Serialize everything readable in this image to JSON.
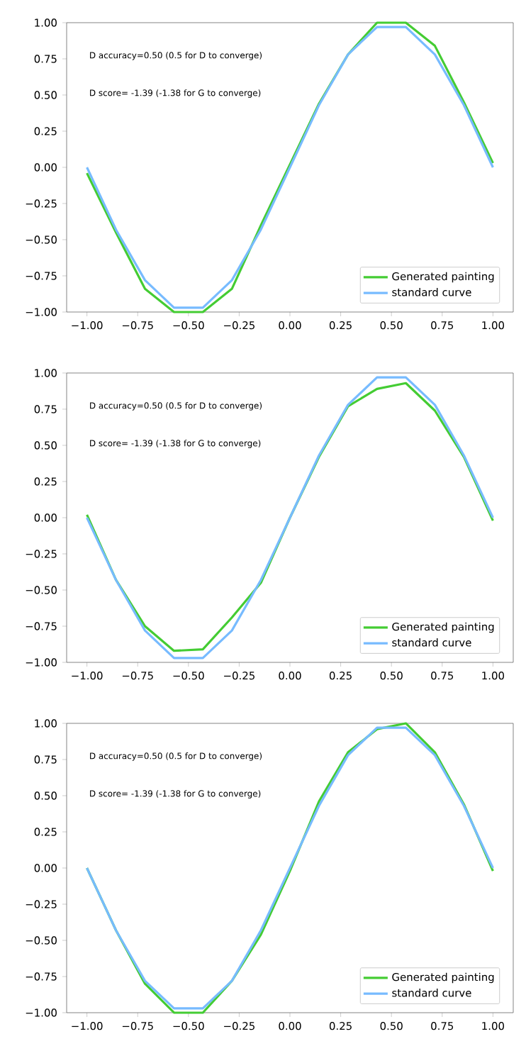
{
  "chart_data": [
    {
      "type": "line",
      "x": [
        -1,
        -0.857,
        -0.714,
        -0.571,
        -0.429,
        -0.286,
        -0.143,
        0,
        0.143,
        0.286,
        0.429,
        0.571,
        0.714,
        0.857,
        1
      ],
      "xlim": [
        -1.1,
        1.1
      ],
      "ylim": [
        -1,
        1
      ],
      "xticks": [
        {
          "value": -1,
          "label": "−1.00"
        },
        {
          "value": -0.75,
          "label": "−0.75"
        },
        {
          "value": -0.5,
          "label": "−0.50"
        },
        {
          "value": -0.25,
          "label": "−0.25"
        },
        {
          "value": 0,
          "label": "0.00"
        },
        {
          "value": 0.25,
          "label": "0.25"
        },
        {
          "value": 0.5,
          "label": "0.50"
        },
        {
          "value": 0.75,
          "label": "0.75"
        },
        {
          "value": 1,
          "label": "1.00"
        }
      ],
      "yticks": [
        {
          "value": -1,
          "label": "−1.00"
        },
        {
          "value": -0.75,
          "label": "−0.75"
        },
        {
          "value": -0.5,
          "label": "−0.50"
        },
        {
          "value": -0.25,
          "label": "−0.25"
        },
        {
          "value": 0,
          "label": "0.00"
        },
        {
          "value": 0.25,
          "label": "0.25"
        },
        {
          "value": 0.5,
          "label": "0.50"
        },
        {
          "value": 0.75,
          "label": "0.75"
        },
        {
          "value": 1,
          "label": "1.00"
        }
      ],
      "legend": "bottom right",
      "annotations": [
        "D accuracy=0.50 (0.5 for D to converge)",
        "D score= -1.39 (-1.38 for G to converge)"
      ],
      "series": [
        {
          "name": "Generated painting",
          "color": "#44cc33",
          "values": [
            -0.04,
            -0.45,
            -0.84,
            -1.0,
            -1.0,
            -0.84,
            -0.4,
            0.02,
            0.44,
            0.78,
            1.0,
            1.0,
            0.84,
            0.45,
            0.03
          ]
        },
        {
          "name": "standard curve",
          "color": "#77bbff",
          "values": [
            0,
            -0.43,
            -0.78,
            -0.97,
            -0.97,
            -0.78,
            -0.43,
            0,
            0.43,
            0.78,
            0.97,
            0.97,
            0.78,
            0.43,
            0
          ]
        }
      ]
    },
    {
      "type": "line",
      "x": [
        -1,
        -0.857,
        -0.714,
        -0.571,
        -0.429,
        -0.286,
        -0.143,
        0,
        0.143,
        0.286,
        0.429,
        0.571,
        0.714,
        0.857,
        1
      ],
      "xlim": [
        -1.1,
        1.1
      ],
      "ylim": [
        -1,
        1
      ],
      "xticks": [
        {
          "value": -1,
          "label": "−1.00"
        },
        {
          "value": -0.75,
          "label": "−0.75"
        },
        {
          "value": -0.5,
          "label": "−0.50"
        },
        {
          "value": -0.25,
          "label": "−0.25"
        },
        {
          "value": 0,
          "label": "0.00"
        },
        {
          "value": 0.25,
          "label": "0.25"
        },
        {
          "value": 0.5,
          "label": "0.50"
        },
        {
          "value": 0.75,
          "label": "0.75"
        },
        {
          "value": 1,
          "label": "1.00"
        }
      ],
      "yticks": [
        {
          "value": -1,
          "label": "−1.00"
        },
        {
          "value": -0.75,
          "label": "−0.75"
        },
        {
          "value": -0.5,
          "label": "−0.50"
        },
        {
          "value": -0.25,
          "label": "−0.25"
        },
        {
          "value": 0,
          "label": "0.00"
        },
        {
          "value": 0.25,
          "label": "0.25"
        },
        {
          "value": 0.5,
          "label": "0.50"
        },
        {
          "value": 0.75,
          "label": "0.75"
        },
        {
          "value": 1,
          "label": "1.00"
        }
      ],
      "legend": "bottom right",
      "annotations": [
        "D accuracy=0.50 (0.5 for D to converge)",
        "D score= -1.39 (-1.38 for G to converge)"
      ],
      "series": [
        {
          "name": "Generated painting",
          "color": "#44cc33",
          "values": [
            0.02,
            -0.43,
            -0.75,
            -0.92,
            -0.91,
            -0.69,
            -0.45,
            0.0,
            0.42,
            0.77,
            0.89,
            0.93,
            0.74,
            0.42,
            -0.02
          ]
        },
        {
          "name": "standard curve",
          "color": "#77bbff",
          "values": [
            0,
            -0.43,
            -0.78,
            -0.97,
            -0.97,
            -0.78,
            -0.43,
            0,
            0.43,
            0.78,
            0.97,
            0.97,
            0.78,
            0.43,
            0
          ]
        }
      ]
    },
    {
      "type": "line",
      "x": [
        -1,
        -0.857,
        -0.714,
        -0.571,
        -0.429,
        -0.286,
        -0.143,
        0,
        0.143,
        0.286,
        0.429,
        0.571,
        0.714,
        0.857,
        1
      ],
      "xlim": [
        -1.1,
        1.1
      ],
      "ylim": [
        -1,
        1
      ],
      "xticks": [
        {
          "value": -1,
          "label": "−1.00"
        },
        {
          "value": -0.75,
          "label": "−0.75"
        },
        {
          "value": -0.5,
          "label": "−0.50"
        },
        {
          "value": -0.25,
          "label": "−0.25"
        },
        {
          "value": 0,
          "label": "0.00"
        },
        {
          "value": 0.25,
          "label": "0.25"
        },
        {
          "value": 0.5,
          "label": "0.50"
        },
        {
          "value": 0.75,
          "label": "0.75"
        },
        {
          "value": 1,
          "label": "1.00"
        }
      ],
      "yticks": [
        {
          "value": -1,
          "label": "−1.00"
        },
        {
          "value": -0.75,
          "label": "−0.75"
        },
        {
          "value": -0.5,
          "label": "−0.50"
        },
        {
          "value": -0.25,
          "label": "−0.25"
        },
        {
          "value": 0,
          "label": "0.00"
        },
        {
          "value": 0.25,
          "label": "0.25"
        },
        {
          "value": 0.5,
          "label": "0.50"
        },
        {
          "value": 0.75,
          "label": "0.75"
        },
        {
          "value": 1,
          "label": "1.00"
        }
      ],
      "legend": "bottom right",
      "annotations": [
        "D accuracy=0.50 (0.5 for D to converge)",
        "D score= -1.39 (-1.38 for G to converge)"
      ],
      "series": [
        {
          "name": "Generated painting",
          "color": "#44cc33",
          "values": [
            0.0,
            -0.43,
            -0.8,
            -1.0,
            -1.0,
            -0.78,
            -0.46,
            -0.02,
            0.46,
            0.8,
            0.96,
            1.0,
            0.8,
            0.44,
            -0.02
          ]
        },
        {
          "name": "standard curve",
          "color": "#77bbff",
          "values": [
            0,
            -0.43,
            -0.78,
            -0.97,
            -0.97,
            -0.78,
            -0.43,
            0,
            0.43,
            0.78,
            0.97,
            0.97,
            0.78,
            0.43,
            0
          ]
        }
      ]
    }
  ]
}
